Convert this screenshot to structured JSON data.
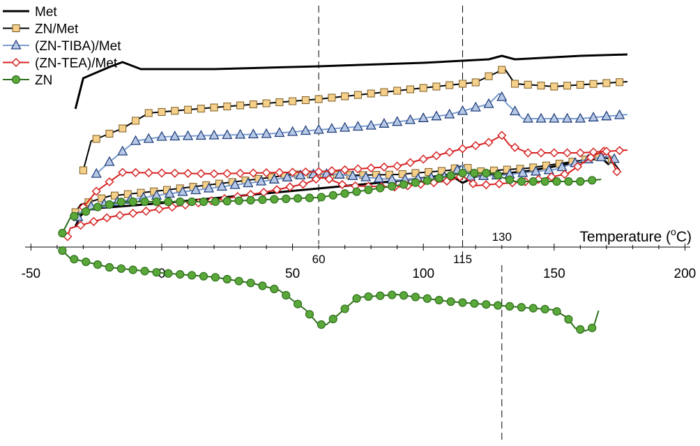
{
  "chart_data": {
    "type": "line",
    "title": "",
    "xlabel": "Temperature (",
    "xlabel_sup": "o",
    "xlabel_unit": "C)",
    "ylabel": "",
    "xlim": [
      -50,
      200
    ],
    "x_ticks": [
      "-50",
      "0",
      "50",
      "100",
      "150",
      "200"
    ],
    "x_tick_values": [
      -50,
      0,
      50,
      100,
      150,
      200
    ],
    "annotations": [
      {
        "label": "60",
        "x": 60
      },
      {
        "label": "115",
        "x": 115
      },
      {
        "label": "130",
        "x": 130
      }
    ],
    "legend_position": "top-left",
    "series": [
      {
        "name": "Met",
        "color": "#000000",
        "marker": "none"
      },
      {
        "name": "ZN/Met",
        "color": "#000000",
        "fill": "#f5d08a",
        "marker": "square"
      },
      {
        "name": "(ZN-TIBA)/Met",
        "color": "#7a9cd0",
        "fill": "#b7c9e6",
        "marker": "triangle"
      },
      {
        "name": "(ZN-TEA)/Met",
        "color": "#d62020",
        "fill": "#ffffff",
        "marker": "diamond"
      },
      {
        "name": "ZN",
        "color": "#2d6e1a",
        "fill": "#5aa83a",
        "marker": "circle"
      }
    ],
    "heating_curves": {
      "Met": [
        [
          -33,
          -30
        ],
        [
          -31,
          -45
        ],
        [
          -28,
          -55
        ],
        [
          -20,
          -57
        ],
        [
          0,
          -63
        ],
        [
          20,
          -70
        ],
        [
          40,
          -77
        ],
        [
          60,
          -84
        ],
        [
          80,
          -91
        ],
        [
          100,
          -99
        ],
        [
          110,
          -104
        ],
        [
          115,
          -92
        ],
        [
          120,
          -101
        ],
        [
          140,
          -109
        ],
        [
          160,
          -122
        ],
        [
          168,
          -128
        ],
        [
          171,
          -118
        ]
      ],
      "ZN/Met": [
        [
          -33,
          -50
        ],
        [
          -31,
          -61
        ],
        [
          -20,
          -73
        ],
        [
          -10,
          -77
        ],
        [
          0,
          -81
        ],
        [
          20,
          -90
        ],
        [
          40,
          -99
        ],
        [
          50,
          -104
        ],
        [
          60,
          -104
        ],
        [
          75,
          -103
        ],
        [
          90,
          -104
        ],
        [
          110,
          -110
        ],
        [
          115,
          -117
        ],
        [
          120,
          -108
        ],
        [
          140,
          -113
        ],
        [
          160,
          -124
        ],
        [
          168,
          -130
        ],
        [
          172,
          -125
        ],
        [
          175,
          -110
        ]
      ],
      "(ZN-TIBA)/Met": [
        [
          -32,
          -43
        ],
        [
          -30,
          -56
        ],
        [
          -20,
          -63
        ],
        [
          -10,
          -69
        ],
        [
          0,
          -75
        ],
        [
          20,
          -85
        ],
        [
          40,
          -95
        ],
        [
          55,
          -104
        ],
        [
          65,
          -105
        ],
        [
          75,
          -101
        ],
        [
          90,
          -96
        ],
        [
          110,
          -101
        ],
        [
          115,
          -117
        ],
        [
          118,
          -101
        ],
        [
          130,
          -103
        ],
        [
          150,
          -111
        ],
        [
          162,
          -125
        ],
        [
          170,
          -130
        ],
        [
          174,
          -125
        ]
      ],
      "(ZN-TEA)/Met": [
        [
          -36,
          -15
        ],
        [
          -35,
          -27
        ],
        [
          -20,
          -43
        ],
        [
          0,
          -55
        ],
        [
          20,
          -67
        ],
        [
          40,
          -79
        ],
        [
          55,
          -91
        ],
        [
          60,
          -99
        ],
        [
          63,
          -99
        ],
        [
          70,
          -88
        ],
        [
          90,
          -86
        ],
        [
          110,
          -95
        ],
        [
          115,
          -102
        ],
        [
          120,
          -88
        ],
        [
          140,
          -94
        ],
        [
          155,
          -105
        ],
        [
          165,
          -131
        ],
        [
          170,
          -139
        ],
        [
          172,
          -124
        ],
        [
          174,
          -108
        ]
      ],
      "ZN": [
        [
          -38,
          5
        ],
        [
          -35,
          16
        ],
        [
          -20,
          29
        ],
        [
          0,
          37
        ],
        [
          20,
          43
        ],
        [
          35,
          52
        ],
        [
          45,
          62
        ],
        [
          55,
          90
        ],
        [
          60,
          111
        ],
        [
          63,
          111
        ],
        [
          68,
          95
        ],
        [
          75,
          72
        ],
        [
          90,
          68
        ],
        [
          110,
          78
        ],
        [
          130,
          84
        ],
        [
          150,
          90
        ],
        [
          155,
          101
        ],
        [
          158,
          116
        ],
        [
          162,
          120
        ],
        [
          165,
          115
        ],
        [
          167,
          91
        ]
      ]
    },
    "cooling_curves": {
      "Met": [
        [
          -33,
          -198
        ],
        [
          -30,
          -242
        ],
        [
          -20,
          -258
        ],
        [
          -15,
          -265
        ],
        [
          -8,
          -255
        ],
        [
          20,
          -255
        ],
        [
          60,
          -259
        ],
        [
          100,
          -264
        ],
        [
          125,
          -269
        ],
        [
          130,
          -274
        ],
        [
          135,
          -269
        ],
        [
          160,
          -274
        ],
        [
          178,
          -276
        ]
      ],
      "ZN/Met": [
        [
          -30,
          -110
        ],
        [
          -27,
          -152
        ],
        [
          -15,
          -170
        ],
        [
          -5,
          -192
        ],
        [
          20,
          -200
        ],
        [
          60,
          -212
        ],
        [
          100,
          -228
        ],
        [
          120,
          -236
        ],
        [
          128,
          -250
        ],
        [
          131,
          -256
        ],
        [
          135,
          -234
        ],
        [
          150,
          -230
        ],
        [
          170,
          -235
        ],
        [
          178,
          -237
        ]
      ],
      "(ZN-TIBA)/Met": [
        [
          -25,
          -105
        ],
        [
          -20,
          -122
        ],
        [
          -10,
          -152
        ],
        [
          0,
          -158
        ],
        [
          40,
          -162
        ],
        [
          80,
          -174
        ],
        [
          110,
          -190
        ],
        [
          125,
          -205
        ],
        [
          129,
          -220
        ],
        [
          132,
          -205
        ],
        [
          138,
          -184
        ],
        [
          160,
          -184
        ],
        [
          178,
          -190
        ]
      ],
      "(ZN-TEA)/Met": [
        [
          -30,
          -57
        ],
        [
          -25,
          -80
        ],
        [
          -15,
          -107
        ],
        [
          20,
          -105
        ],
        [
          60,
          -108
        ],
        [
          90,
          -116
        ],
        [
          115,
          -141
        ],
        [
          125,
          -150
        ],
        [
          130,
          -160
        ],
        [
          133,
          -146
        ],
        [
          140,
          -135
        ],
        [
          160,
          -135
        ],
        [
          178,
          -139
        ]
      ],
      "ZN": [
        [
          -38,
          -20
        ],
        [
          -35,
          -42
        ],
        [
          -25,
          -57
        ],
        [
          -15,
          -65
        ],
        [
          20,
          -65
        ],
        [
          60,
          -71
        ],
        [
          100,
          -94
        ],
        [
          115,
          -106
        ],
        [
          127,
          -106
        ],
        [
          130,
          -100
        ],
        [
          135,
          -94
        ],
        [
          160,
          -94
        ],
        [
          168,
          -97
        ]
      ]
    }
  }
}
